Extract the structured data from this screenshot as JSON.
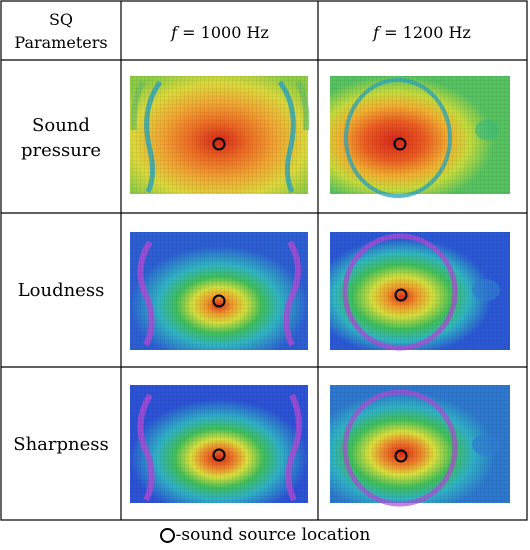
{
  "table": {
    "header_label_line1": "SQ",
    "header_label_line2": "Parameters",
    "columns": [
      {
        "italic_var": "f",
        "rest": " = 1000 Hz"
      },
      {
        "italic_var": "f",
        "rest": " = 1200 Hz"
      }
    ],
    "rows": [
      {
        "label_lines": [
          "Sound",
          "pressure"
        ],
        "key": "sound-pressure"
      },
      {
        "label_lines": [
          "Loudness"
        ],
        "key": "loudness"
      },
      {
        "label_lines": [
          "Sharpness"
        ],
        "key": "sharpness"
      }
    ]
  },
  "legend": {
    "symbol_name": "circle-marker-icon",
    "text": "-sound source location"
  },
  "colors": {
    "border": "#000000",
    "red": "#e53a1e",
    "orange": "#f39a2a",
    "yellow": "#e6e23a",
    "green": "#3fc05a",
    "cyan": "#34b8c6",
    "blue": "#2a55d8",
    "purple": "#b24ad8"
  }
}
